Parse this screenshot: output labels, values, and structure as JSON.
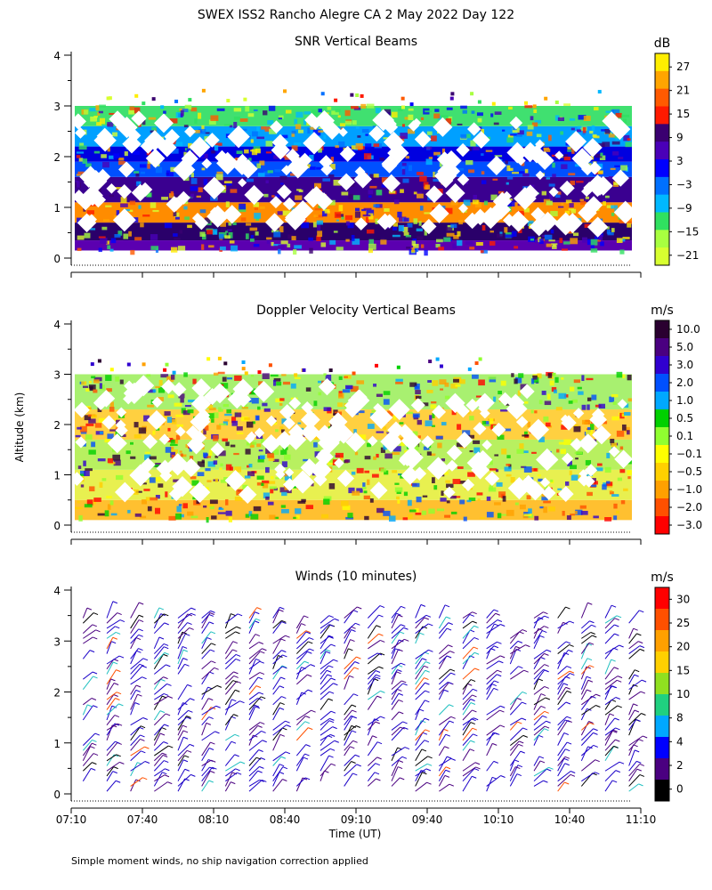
{
  "figure": {
    "title": "SWEX ISS2 Rancho Alegre CA   2 May 2022 Day 122",
    "footnote": "Simple moment winds, no ship navigation correction applied",
    "shared_ylabel": "Altitude (km)",
    "xlabel": "Time (UT)"
  },
  "chart_data": [
    {
      "type": "heatmap",
      "title": "SNR Vertical Beams",
      "ylabel": "Altitude (km)",
      "xlabel": "Time (UT)",
      "x_ticks": [
        "07:10",
        "07:40",
        "08:10",
        "08:40",
        "09:10",
        "09:40",
        "10:10",
        "10:40",
        "11:10"
      ],
      "y_ticks": [
        0,
        1,
        2,
        3,
        4
      ],
      "xlim": [
        "07:10",
        "11:10"
      ],
      "ylim": [
        0,
        4
      ],
      "colorbar": {
        "unit": "dB",
        "labels": [
          "27",
          "21",
          "15",
          "9",
          "3",
          "−3",
          "−9",
          "−15",
          "−21"
        ],
        "colors": [
          "#ffee00",
          "#ffa500",
          "#ff5a00",
          "#ff1a00",
          "#3a0070",
          "#4a00b8",
          "#0000ff",
          "#0070ff",
          "#00b8ff",
          "#30e060",
          "#a8ff40",
          "#d8ff30"
        ]
      },
      "bands": [
        {
          "from": 0.15,
          "to": 0.35,
          "color": "#5b00b0"
        },
        {
          "from": 0.35,
          "to": 0.7,
          "color": "#2a006a"
        },
        {
          "from": 0.7,
          "to": 1.1,
          "color": "#ff8c00"
        },
        {
          "from": 1.1,
          "to": 1.6,
          "color": "#3a0090"
        },
        {
          "from": 1.6,
          "to": 1.9,
          "color": "#0050ff"
        },
        {
          "from": 1.9,
          "to": 2.2,
          "color": "#0000e0"
        },
        {
          "from": 2.2,
          "to": 2.6,
          "color": "#00a0ff"
        },
        {
          "from": 2.6,
          "to": 3.0,
          "color": "#40e070"
        }
      ]
    },
    {
      "type": "heatmap",
      "title": "Doppler Velocity Vertical Beams",
      "ylabel": "Altitude (km)",
      "xlabel": "Time (UT)",
      "x_ticks": [
        "07:10",
        "07:40",
        "08:10",
        "08:40",
        "09:10",
        "09:40",
        "10:10",
        "10:40",
        "11:10"
      ],
      "y_ticks": [
        0,
        1,
        2,
        3,
        4
      ],
      "xlim": [
        "07:10",
        "11:10"
      ],
      "ylim": [
        0,
        4
      ],
      "colorbar": {
        "unit": "m/s",
        "labels": [
          "10.0",
          "5.0",
          "3.0",
          "2.0",
          "1.0",
          "0.5",
          "0.1",
          "−0.1",
          "−0.5",
          "−1.0",
          "−2.0",
          "−3.0"
        ],
        "colors": [
          "#2a0030",
          "#4a0080",
          "#3000d0",
          "#0050ff",
          "#00a8ff",
          "#00d000",
          "#90ff30",
          "#ffff00",
          "#ffd000",
          "#ffa000",
          "#ff5000",
          "#ff0000"
        ]
      },
      "bands": [
        {
          "from": 0.1,
          "to": 0.5,
          "color": "#ffc030"
        },
        {
          "from": 0.5,
          "to": 1.1,
          "color": "#e8f050"
        },
        {
          "from": 1.1,
          "to": 1.7,
          "color": "#b8f060"
        },
        {
          "from": 1.7,
          "to": 2.3,
          "color": "#ffd040"
        },
        {
          "from": 2.3,
          "to": 3.0,
          "color": "#a8f070"
        }
      ]
    },
    {
      "type": "scatter",
      "title": "Winds (10 minutes)",
      "ylabel": "Altitude (km)",
      "xlabel": "Time (UT)",
      "x_ticks": [
        "07:10",
        "07:40",
        "08:10",
        "08:40",
        "09:10",
        "09:40",
        "10:10",
        "10:40",
        "11:10"
      ],
      "y_ticks": [
        0,
        1,
        2,
        3,
        4
      ],
      "xlim": [
        "07:10",
        "11:10"
      ],
      "ylim": [
        0,
        4
      ],
      "colorbar": {
        "unit": "m/s",
        "labels": [
          "30",
          "25",
          "20",
          "15",
          "10",
          "8",
          "4",
          "2",
          "0"
        ],
        "colors": [
          "#ff0000",
          "#ff5000",
          "#ffa000",
          "#ffd000",
          "#90e020",
          "#20d080",
          "#00a8ff",
          "#0000ff",
          "#4a0080",
          "#000000"
        ]
      },
      "profile_times_min_after_0710": [
        5,
        15,
        25,
        35,
        45,
        55,
        65,
        75,
        85,
        95,
        105,
        115,
        125,
        135,
        145,
        155,
        165,
        175,
        185,
        195,
        205,
        215,
        225,
        235
      ]
    }
  ]
}
